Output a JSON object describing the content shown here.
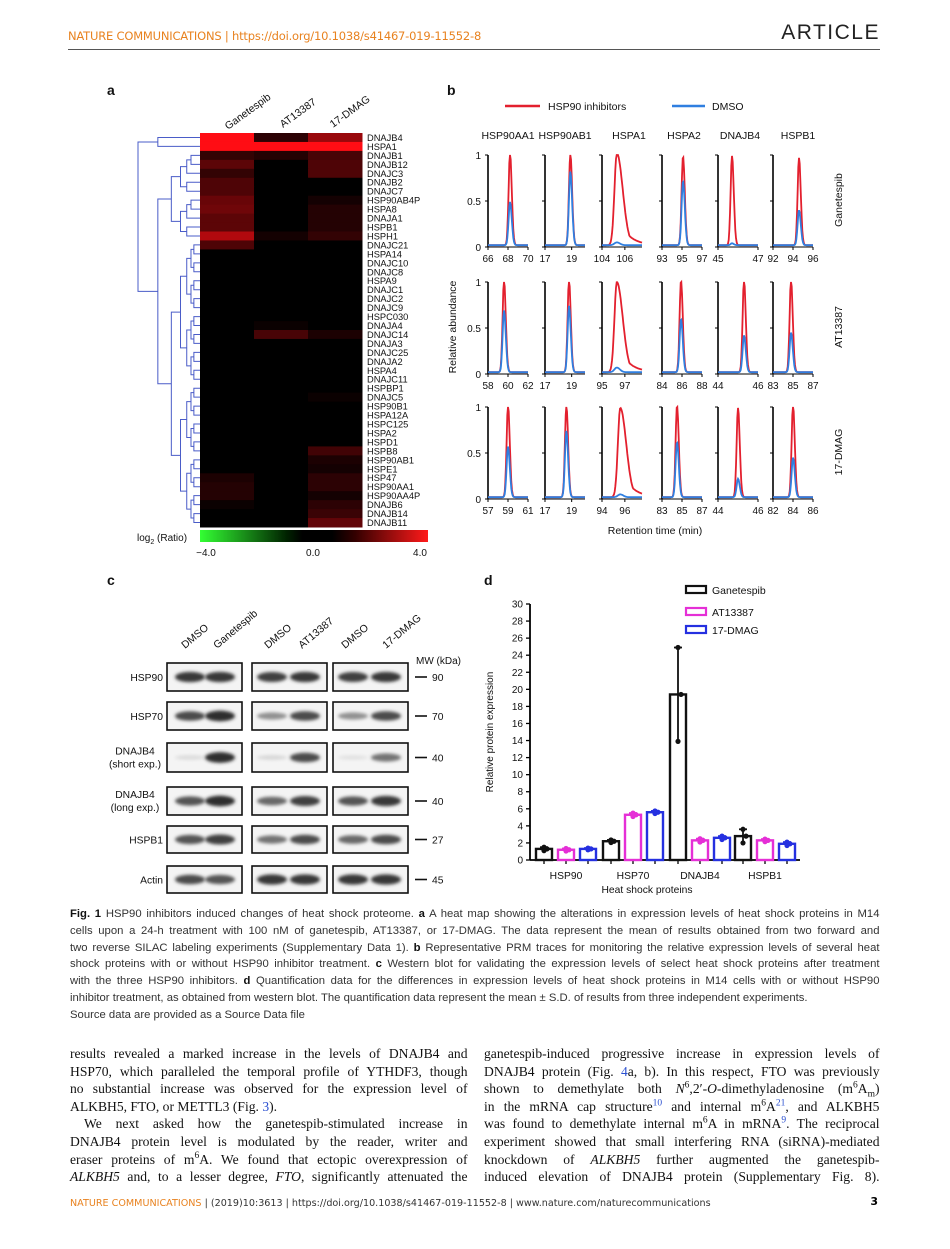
{
  "header": {
    "journal": "NATURE COMMUNICATIONS | https://doi.org/10.1038/s41467-019-11552-8",
    "section": "ARTICLE"
  },
  "colors": {
    "brand": "#e8821f",
    "red": "#e3202e",
    "blue": "#2f7fe0",
    "magenta": "#e52fd6",
    "navy": "#2530e0",
    "dendrogram": "#4a5cc8",
    "link": "#2a4fd0"
  },
  "figure": {
    "panel_labels": [
      "a",
      "b",
      "c",
      "d"
    ],
    "panel_c": {
      "lanes": [
        "DMSO",
        "Ganetespib",
        "DMSO",
        "AT13387",
        "DMSO",
        "17-DMAG"
      ],
      "mw_title": "MW (kDa)",
      "rows": [
        {
          "label": "HSP90",
          "sublabel": "",
          "mw": "90",
          "band_intensity": [
            0.9,
            0.9,
            0.85,
            0.9,
            0.85,
            0.9
          ]
        },
        {
          "label": "HSP70",
          "sublabel": "",
          "mw": "70",
          "band_intensity": [
            0.8,
            0.95,
            0.45,
            0.8,
            0.45,
            0.8
          ]
        },
        {
          "label": "DNAJB4",
          "sublabel": "(short exp.)",
          "mw": "40",
          "band_intensity": [
            0.08,
            0.95,
            0.1,
            0.8,
            0.05,
            0.6
          ]
        },
        {
          "label": "DNAJB4",
          "sublabel": "(long exp.)",
          "mw": "40",
          "band_intensity": [
            0.75,
            0.95,
            0.65,
            0.85,
            0.75,
            0.9
          ]
        },
        {
          "label": "HSPB1",
          "sublabel": "",
          "mw": "27",
          "band_intensity": [
            0.75,
            0.85,
            0.6,
            0.8,
            0.65,
            0.8
          ]
        },
        {
          "label": "Actin",
          "sublabel": "",
          "mw": "45",
          "band_intensity": [
            0.8,
            0.75,
            0.9,
            0.9,
            0.9,
            0.9
          ]
        }
      ]
    }
  },
  "chart_data": [
    {
      "type": "heatmap",
      "columns": [
        "Ganetespib",
        "AT13387",
        "17-DMAG"
      ],
      "rows": [
        "DNAJB4",
        "HSPA1",
        "DNAJB1",
        "DNAJB12",
        "DNAJC3",
        "DNAJB2",
        "DNAJC7",
        "HSP90AB4P",
        "HSPA8",
        "DNAJA1",
        "HSPB1",
        "HSPH1",
        "DNAJC21",
        "HSPA14",
        "DNAJC10",
        "DNAJC8",
        "HSPA9",
        "DNAJC1",
        "DNAJC2",
        "DNAJC9",
        "HSPC030",
        "DNAJA4",
        "DNAJC14",
        "DNAJA3",
        "DNAJC25",
        "DNAJA2",
        "HSPA4",
        "DNAJC11",
        "HSPBP1",
        "DNAJC5",
        "HSP90B1",
        "HSPA12A",
        "HSPC125",
        "HSPA2",
        "HSPD1",
        "HSPB8",
        "HSP90AB1",
        "HSPE1",
        "HSP47",
        "HSP90AA1",
        "HSP90AA4P",
        "DNAJB6",
        "DNAJB14",
        "DNAJB11"
      ],
      "values": [
        [
          4,
          0.5,
          2.2
        ],
        [
          4,
          4,
          4
        ],
        [
          0.6,
          0.4,
          0.9
        ],
        [
          1.2,
          0,
          1.0
        ],
        [
          0.6,
          0,
          1.0
        ],
        [
          1.0,
          0,
          0
        ],
        [
          1.0,
          0,
          0
        ],
        [
          1.4,
          0,
          0.2
        ],
        [
          1.5,
          0,
          0.4
        ],
        [
          1.2,
          0,
          0.4
        ],
        [
          1.2,
          0,
          0.4
        ],
        [
          2.6,
          0.2,
          0.6
        ],
        [
          1.0,
          0,
          0
        ],
        [
          0,
          0,
          0
        ],
        [
          0,
          0,
          0
        ],
        [
          0,
          0,
          0
        ],
        [
          0,
          0,
          0
        ],
        [
          0,
          0,
          0
        ],
        [
          0,
          0,
          0
        ],
        [
          0,
          0,
          0
        ],
        [
          0,
          0,
          0
        ],
        [
          0,
          0.1,
          0
        ],
        [
          0,
          0.9,
          0.3
        ],
        [
          0,
          0,
          0
        ],
        [
          0,
          0,
          0
        ],
        [
          0,
          0,
          0
        ],
        [
          0,
          0,
          0
        ],
        [
          0,
          0,
          0
        ],
        [
          0,
          0,
          0
        ],
        [
          0,
          0,
          0.1
        ],
        [
          0,
          0,
          0
        ],
        [
          0,
          0,
          0
        ],
        [
          0,
          0,
          0
        ],
        [
          0,
          0,
          0
        ],
        [
          0,
          0,
          0
        ],
        [
          0,
          0,
          0.8
        ],
        [
          0,
          0,
          0.3
        ],
        [
          0,
          0,
          0.2
        ],
        [
          0.3,
          0,
          0.5
        ],
        [
          0.4,
          0,
          0.5
        ],
        [
          0.4,
          0,
          0.2
        ],
        [
          0.1,
          0,
          0.5
        ],
        [
          0,
          0,
          0.7
        ],
        [
          0,
          0,
          1.3
        ]
      ],
      "colorbar": {
        "label": "log",
        "label_sub": "2",
        "label_tail": " (Ratio)",
        "ticks": [
          "−4.0",
          "0.0",
          "4.0"
        ],
        "range": [
          -4,
          4
        ],
        "low_color": "#33ff33",
        "mid_color": "#000000",
        "high_color": "#ff1a1a"
      }
    },
    {
      "type": "line",
      "legend": [
        "HSP90 inhibitors",
        "DMSO"
      ],
      "columns": [
        "HSP90AA1",
        "HSP90AB1",
        "HSPA1",
        "HSPA2",
        "DNAJB4",
        "HSPB1"
      ],
      "rows": [
        "Ganetespib",
        "AT13387",
        "17-DMAG"
      ],
      "ylabel": "Relative abundance",
      "xlabel": "Retention time (min)",
      "yticks": [
        "1",
        "0.5",
        "0"
      ],
      "ylim": [
        0,
        1
      ],
      "panels": [
        [
          {
            "xlim": [
              66,
              70
            ],
            "xticks": [
              "66",
              "68",
              "70"
            ],
            "peak": 68.2,
            "inhibitor_max": 1,
            "dmso_max": 0.47
          },
          {
            "xlim": [
              17,
              20
            ],
            "xticks": [
              "17",
              "19"
            ],
            "peak": 18.9,
            "inhibitor_max": 1,
            "dmso_max": 0.8
          },
          {
            "xlim": [
              104,
              107.5
            ],
            "xticks": [
              "104",
              "106"
            ],
            "peak": 105.3,
            "inhibitor_max": 1,
            "dmso_max": 0.03
          },
          {
            "xlim": [
              93,
              97
            ],
            "xticks": [
              "93",
              "95",
              "97"
            ],
            "peak": 95.1,
            "inhibitor_max": 0.97,
            "dmso_max": 0.7
          },
          {
            "xlim": [
              45,
              47
            ],
            "xticks": [
              "45",
              "47"
            ],
            "peak": 45.7,
            "inhibitor_max": 0.97,
            "dmso_max": 0.02
          },
          {
            "xlim": [
              92,
              96
            ],
            "xticks": [
              "92",
              "94",
              "96"
            ],
            "peak": 94.6,
            "inhibitor_max": 0.95,
            "dmso_max": 0.38
          }
        ],
        [
          {
            "xlim": [
              58,
              62
            ],
            "xticks": [
              "58",
              "60",
              "62"
            ],
            "peak": 59.6,
            "inhibitor_max": 1,
            "dmso_max": 0.67
          },
          {
            "xlim": [
              17,
              20
            ],
            "xticks": [
              "17",
              "19"
            ],
            "peak": 18.8,
            "inhibitor_max": 1,
            "dmso_max": 0.72
          },
          {
            "xlim": [
              95,
              98.5
            ],
            "xticks": [
              "95",
              "97"
            ],
            "peak": 96.3,
            "inhibitor_max": 0.98,
            "dmso_max": 0.05
          },
          {
            "xlim": [
              84,
              88
            ],
            "xticks": [
              "84",
              "86",
              "88"
            ],
            "peak": 85.9,
            "inhibitor_max": 1,
            "dmso_max": 0.58
          },
          {
            "xlim": [
              44,
              46
            ],
            "xticks": [
              "44",
              "46"
            ],
            "peak": 45.3,
            "inhibitor_max": 1,
            "dmso_max": 0.4
          },
          {
            "xlim": [
              83,
              87
            ],
            "xticks": [
              "83",
              "85",
              "87"
            ],
            "peak": 84.8,
            "inhibitor_max": 1,
            "dmso_max": 0.43
          }
        ],
        [
          {
            "xlim": [
              57,
              61
            ],
            "xticks": [
              "57",
              "59",
              "61"
            ],
            "peak": 59.0,
            "inhibitor_max": 1,
            "dmso_max": 0.55
          },
          {
            "xlim": [
              17,
              20
            ],
            "xticks": [
              "17",
              "19"
            ],
            "peak": 18.6,
            "inhibitor_max": 1,
            "dmso_max": 0.72
          },
          {
            "xlim": [
              94,
              97.5
            ],
            "xticks": [
              "94",
              "96"
            ],
            "peak": 95.6,
            "inhibitor_max": 0.97,
            "dmso_max": 0.03
          },
          {
            "xlim": [
              83,
              87
            ],
            "xticks": [
              "83",
              "85",
              "87"
            ],
            "peak": 84.5,
            "inhibitor_max": 1,
            "dmso_max": 0.6
          },
          {
            "xlim": [
              44,
              46
            ],
            "xticks": [
              "44",
              "46"
            ],
            "peak": 45.0,
            "inhibitor_max": 0.97,
            "dmso_max": 0.2
          },
          {
            "xlim": [
              82,
              86
            ],
            "xticks": [
              "82",
              "84",
              "86"
            ],
            "peak": 84.0,
            "inhibitor_max": 1,
            "dmso_max": 0.43
          }
        ]
      ]
    },
    {
      "type": "bar",
      "categories": [
        "HSP90",
        "HSP70",
        "DNAJB4",
        "HSPB1"
      ],
      "series": [
        {
          "name": "Ganetespib",
          "color": "#111111",
          "values": [
            1.3,
            2.2,
            19.4,
            2.8
          ],
          "sd": [
            0.2,
            0.15,
            5.5,
            0.8
          ]
        },
        {
          "name": "AT13387",
          "color": "#e52fd6",
          "values": [
            1.2,
            5.3,
            2.3,
            2.3
          ],
          "sd": [
            0.15,
            0.2,
            0.2,
            0.15
          ]
        },
        {
          "name": "17-DMAG",
          "color": "#2530e0",
          "values": [
            1.3,
            5.6,
            2.6,
            1.9
          ],
          "sd": [
            0.1,
            0.15,
            0.2,
            0.2
          ]
        }
      ],
      "xlabel": "Heat shock proteins",
      "ylabel": "Relative protein expression",
      "ylim": [
        0,
        30
      ],
      "yticks": [
        "0",
        "2",
        "4",
        "6",
        "8",
        "10",
        "12",
        "14",
        "16",
        "18",
        "20",
        "22",
        "24",
        "26",
        "28",
        "30"
      ],
      "legend": "top-right"
    }
  ],
  "caption": {
    "lines": [
      [
        {
          "s": "b",
          "t": "Fig. 1"
        },
        {
          "t": " HSP90 inhibitors induced changes of heat shock proteome. "
        },
        {
          "s": "b",
          "t": "a"
        },
        {
          "t": " A heat map showing the alterations in expression levels of heat shock proteins in M14"
        }
      ],
      [
        {
          "t": "cells upon a 24-h treatment with 100 nM of ganetespib, AT13387, or 17-DMAG. The data represent the mean of results obtained from two forward and"
        }
      ],
      [
        {
          "t": "two reverse SILAC labeling experiments (Supplementary Data 1). "
        },
        {
          "s": "b",
          "t": "b"
        },
        {
          "t": " Representative PRM traces for monitoring the relative expression levels of several heat"
        }
      ],
      [
        {
          "t": "shock proteins with or without HSP90 inhibitor treatment. "
        },
        {
          "s": "b",
          "t": "c"
        },
        {
          "t": " Western blot for validating the expression levels of select heat shock proteins after treatment"
        }
      ],
      [
        {
          "t": "with the three HSP90 inhibitors. "
        },
        {
          "s": "b",
          "t": "d"
        },
        {
          "t": " Quantification data for the differences in expression levels of heat shock proteins in M14 cells with or without HSP90"
        }
      ],
      [
        {
          "t": "inhibitor treatment, as obtained from western blot. The quantification data represent the mean ± S.D. of results from three independent experiments."
        }
      ],
      [
        {
          "t": "Source data are provided as a Source Data file"
        }
      ]
    ]
  },
  "body": {
    "col1": [
      [
        {
          "t": "results revealed a marked increase in the levels of DNAJB4 and"
        }
      ],
      [
        {
          "t": "HSP70, which paralleled the temporal profile of YTHDF3, though"
        }
      ],
      [
        {
          "t": "no substantial increase was observed for the expression level of"
        }
      ],
      [
        {
          "t": "ALKBH5, FTO, or METTL3 (Fig. "
        },
        {
          "s": "link",
          "t": "3"
        },
        {
          "t": ")."
        }
      ],
      [
        {
          "t": "We next asked how the ganetespib-stimulated increase in"
        }
      ],
      [
        {
          "t": "DNAJB4 protein level is modulated by the reader, writer and"
        }
      ],
      [
        {
          "t": "eraser proteins of m"
        },
        {
          "s": "sup",
          "t": "6"
        },
        {
          "t": "A. We found that ectopic overexpression of"
        }
      ],
      [
        {
          "s": "i",
          "t": "ALKBH5"
        },
        {
          "t": " and, to a lesser degree, "
        },
        {
          "s": "i",
          "t": "FTO"
        },
        {
          "t": ", significantly attenuated the"
        }
      ]
    ],
    "col2": [
      [
        {
          "t": "ganetespib-induced progressive increase in expression levels of"
        }
      ],
      [
        {
          "t": "DNAJB4 protein (Fig. "
        },
        {
          "s": "link",
          "t": "4"
        },
        {
          "t": "a, b). In this respect, FTO was previously"
        }
      ],
      [
        {
          "t": "shown to demethylate both "
        },
        {
          "s": "i",
          "t": "N"
        },
        {
          "s": "sup",
          "t": "6"
        },
        {
          "t": ",2′-"
        },
        {
          "s": "i",
          "t": "O"
        },
        {
          "t": "-dimethyladenosine (m"
        },
        {
          "s": "sup",
          "t": "6"
        },
        {
          "t": "A"
        },
        {
          "s": "sub",
          "t": "m"
        },
        {
          "t": ")"
        }
      ],
      [
        {
          "t": "in the mRNA cap structure"
        },
        {
          "s": "suplink",
          "t": "10"
        },
        {
          "t": " and internal m"
        },
        {
          "s": "sup",
          "t": "6"
        },
        {
          "t": "A"
        },
        {
          "s": "suplink",
          "t": "21"
        },
        {
          "t": ", and ALKBH5"
        }
      ],
      [
        {
          "t": "was found to demethylate internal m"
        },
        {
          "s": "sup",
          "t": "6"
        },
        {
          "t": "A in mRNA"
        },
        {
          "s": "suplink",
          "t": "9"
        },
        {
          "t": ". The reciprocal"
        }
      ],
      [
        {
          "t": "experiment showed that small interfering RNA (siRNA)-mediated"
        }
      ],
      [
        {
          "t": "knockdown of "
        },
        {
          "s": "i",
          "t": "ALKBH5"
        },
        {
          "t": " further augmented the ganetespib-"
        }
      ],
      [
        {
          "t": "induced elevation of DNAJB4 protein (Supplementary Fig. 8)."
        }
      ]
    ]
  },
  "footer": {
    "brand": "NATURE COMMUNICATIONS",
    "rest": " | (2019)10:3613 | https://doi.org/10.1038/s41467-019-11552-8 | www.nature.com/naturecommunications",
    "page": "3"
  }
}
